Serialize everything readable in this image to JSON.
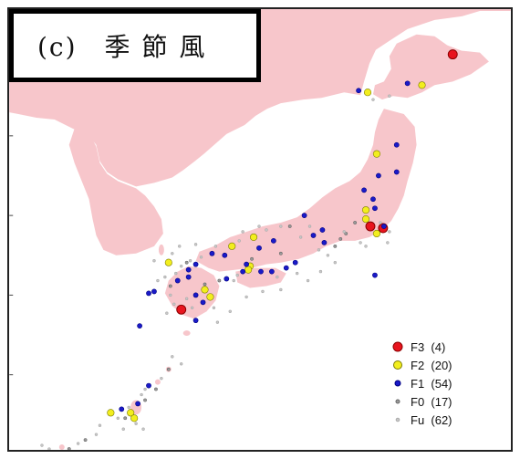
{
  "title": "(c)　季 節 風",
  "colors": {
    "land": "#f7c6cb",
    "sea": "#ffffff",
    "frame": "#222222"
  },
  "legend": [
    {
      "key": "F3",
      "label": "F3  (4)",
      "color": "#e8141e",
      "stroke": "#8a0000",
      "size": "large"
    },
    {
      "key": "F2",
      "label": "F2  (20)",
      "color": "#f2ee1e",
      "stroke": "#7a7a00",
      "size": "medium"
    },
    {
      "key": "F1",
      "label": "F1  (54)",
      "color": "#1a1ac8",
      "stroke": "#000080",
      "size": "small"
    },
    {
      "key": "F0",
      "label": "F0  (17)",
      "color": "#9a9a9a",
      "stroke": "#666666",
      "size": "tiny"
    },
    {
      "key": "Fu",
      "label": "Fu  (62)",
      "color": "#c8c8c8",
      "stroke": "#aaaaaa",
      "size": "tiny"
    }
  ]
}
